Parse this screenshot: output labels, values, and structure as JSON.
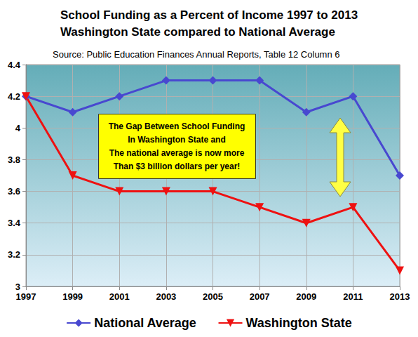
{
  "chart_data": {
    "type": "line",
    "title": "School Funding as a Percent of Income 1997 to 2013\nWashington State compared to National Average",
    "subtitle": "Source: Public Education Finances Annual Reports, Table 12 Column 6",
    "annotation": "The Gap Between School Funding\nIn Washington State and\nThe national average is now more\nThan $3 billion dollars per year!",
    "categories": [
      "1997",
      "1999",
      "2001",
      "2003",
      "2005",
      "2007",
      "2009",
      "2011",
      "2013"
    ],
    "series": [
      {
        "name": "National Average",
        "color": "#4848d0",
        "marker": "diamond",
        "values": [
          4.2,
          4.1,
          4.2,
          4.3,
          4.3,
          4.3,
          4.1,
          4.2,
          3.7
        ]
      },
      {
        "name": "Washington State",
        "color": "#ee1111",
        "marker": "triangle_down",
        "values": [
          4.2,
          3.7,
          3.6,
          3.6,
          3.6,
          3.5,
          3.4,
          3.5,
          3.1
        ]
      }
    ],
    "ylim": [
      3,
      4.4
    ],
    "yticks": [
      3,
      3.2,
      3.4,
      3.6,
      3.8,
      4,
      4.2,
      4.4
    ],
    "grid": true,
    "legend": "bottom"
  }
}
